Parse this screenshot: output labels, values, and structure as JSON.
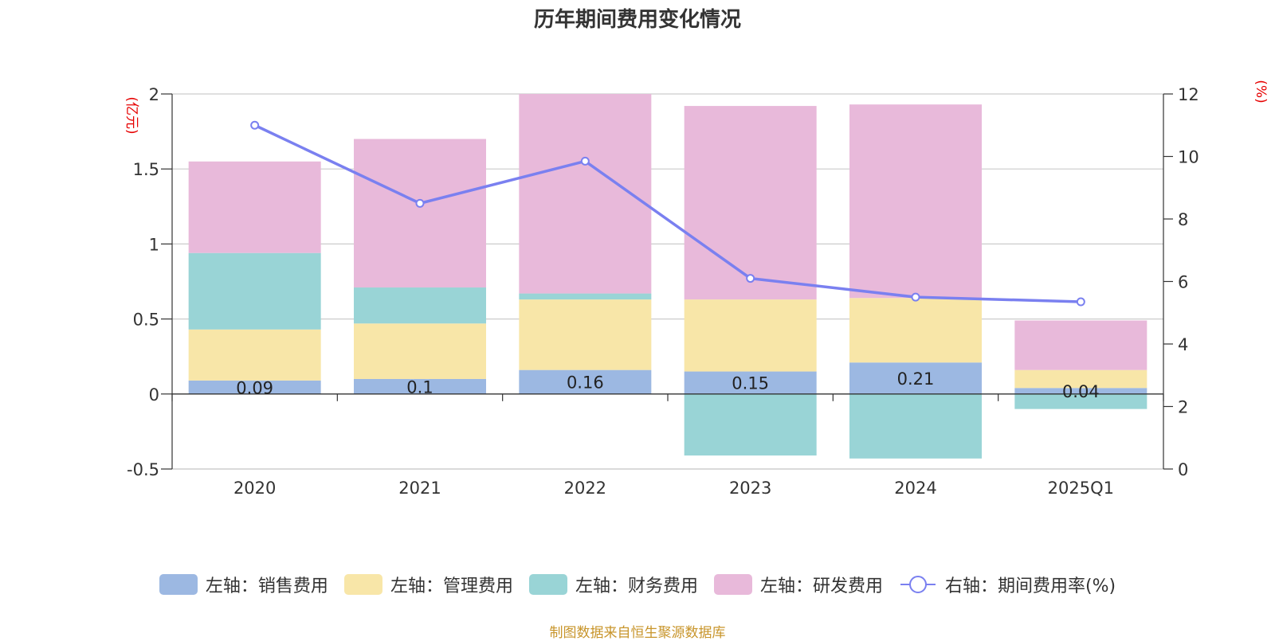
{
  "chart_data": {
    "type": "bar",
    "title": "历年期间费用变化情况",
    "categories": [
      "2020",
      "2021",
      "2022",
      "2023",
      "2024",
      "2025Q1"
    ],
    "left_axis": {
      "unit": "(亿元)",
      "min": -0.5,
      "max": 2,
      "ticks": [
        -0.5,
        0,
        0.5,
        1,
        1.5,
        2
      ],
      "tick_labels": [
        "-0.5",
        "0",
        "0.5",
        "1",
        "1.5",
        "2"
      ]
    },
    "right_axis": {
      "unit": "(%)",
      "min": 0,
      "max": 12,
      "ticks": [
        0,
        2,
        4,
        6,
        8,
        10,
        12
      ],
      "tick_labels": [
        "0",
        "2",
        "4",
        "6",
        "8",
        "10",
        "12"
      ]
    },
    "grid": true,
    "stacked": true,
    "series": [
      {
        "name": "左轴：销售费用",
        "type": "bar",
        "axis": "left",
        "color": "#9cb8e2",
        "values": [
          0.09,
          0.1,
          0.16,
          0.15,
          0.21,
          0.04
        ],
        "data_labels": [
          "0.09",
          "0.1",
          "0.16",
          "0.15",
          "0.21",
          "0.04"
        ]
      },
      {
        "name": "左轴：管理费用",
        "type": "bar",
        "axis": "left",
        "color": "#f8e6a8",
        "values": [
          0.34,
          0.37,
          0.47,
          0.48,
          0.43,
          0.12
        ]
      },
      {
        "name": "左轴：财务费用",
        "type": "bar",
        "axis": "left",
        "color": "#99d4d6",
        "values": [
          0.51,
          0.24,
          0.04,
          -0.41,
          -0.43,
          -0.1
        ]
      },
      {
        "name": "左轴：研发费用",
        "type": "bar",
        "axis": "left",
        "color": "#e8b9da",
        "values": [
          0.61,
          0.99,
          1.33,
          1.29,
          1.29,
          0.33
        ]
      },
      {
        "name": "右轴：期间费用率(%)",
        "type": "line",
        "axis": "right",
        "color": "#7a80f0",
        "values": [
          11.0,
          8.5,
          9.85,
          6.1,
          5.5,
          5.35
        ]
      }
    ],
    "legend_position": "bottom"
  },
  "footer": {
    "source": "制图数据来自恒生聚源数据库"
  }
}
